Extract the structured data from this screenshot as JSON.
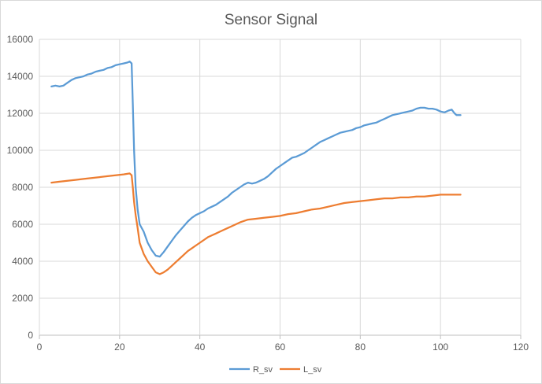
{
  "chart_data": {
    "type": "line",
    "title": "Sensor Signal",
    "xlabel": "",
    "ylabel": "",
    "xlim": [
      0,
      120
    ],
    "ylim": [
      0,
      16000
    ],
    "x_ticks": [
      0,
      20,
      40,
      60,
      80,
      100,
      120
    ],
    "y_ticks": [
      0,
      2000,
      4000,
      6000,
      8000,
      10000,
      12000,
      14000,
      16000
    ],
    "grid": true,
    "legend_position": "bottom",
    "series": [
      {
        "name": "R_sv",
        "color": "#5B9BD5",
        "points": [
          [
            3,
            13450
          ],
          [
            4,
            13500
          ],
          [
            5,
            13450
          ],
          [
            6,
            13500
          ],
          [
            7,
            13650
          ],
          [
            8,
            13800
          ],
          [
            9,
            13900
          ],
          [
            10,
            13950
          ],
          [
            11,
            14000
          ],
          [
            12,
            14100
          ],
          [
            13,
            14150
          ],
          [
            14,
            14250
          ],
          [
            15,
            14300
          ],
          [
            16,
            14350
          ],
          [
            17,
            14450
          ],
          [
            18,
            14500
          ],
          [
            19,
            14600
          ],
          [
            20,
            14650
          ],
          [
            21,
            14700
          ],
          [
            22,
            14750
          ],
          [
            22.5,
            14800
          ],
          [
            23,
            14700
          ],
          [
            23.3,
            12500
          ],
          [
            23.6,
            10000
          ],
          [
            24,
            8000
          ],
          [
            24.5,
            6800
          ],
          [
            25,
            6000
          ],
          [
            26,
            5600
          ],
          [
            27,
            5000
          ],
          [
            28,
            4600
          ],
          [
            29,
            4300
          ],
          [
            30,
            4250
          ],
          [
            31,
            4500
          ],
          [
            32,
            4800
          ],
          [
            33,
            5100
          ],
          [
            34,
            5400
          ],
          [
            35,
            5650
          ],
          [
            36,
            5900
          ],
          [
            37,
            6150
          ],
          [
            38,
            6350
          ],
          [
            39,
            6500
          ],
          [
            40,
            6600
          ],
          [
            41,
            6700
          ],
          [
            42,
            6850
          ],
          [
            43,
            6950
          ],
          [
            44,
            7050
          ],
          [
            45,
            7200
          ],
          [
            46,
            7350
          ],
          [
            47,
            7500
          ],
          [
            48,
            7700
          ],
          [
            49,
            7850
          ],
          [
            50,
            8000
          ],
          [
            51,
            8150
          ],
          [
            52,
            8250
          ],
          [
            53,
            8200
          ],
          [
            54,
            8250
          ],
          [
            55,
            8350
          ],
          [
            56,
            8450
          ],
          [
            57,
            8600
          ],
          [
            58,
            8800
          ],
          [
            59,
            9000
          ],
          [
            60,
            9150
          ],
          [
            61,
            9300
          ],
          [
            62,
            9450
          ],
          [
            63,
            9600
          ],
          [
            64,
            9650
          ],
          [
            65,
            9750
          ],
          [
            66,
            9850
          ],
          [
            67,
            10000
          ],
          [
            68,
            10150
          ],
          [
            69,
            10300
          ],
          [
            70,
            10450
          ],
          [
            71,
            10550
          ],
          [
            72,
            10650
          ],
          [
            73,
            10750
          ],
          [
            74,
            10850
          ],
          [
            75,
            10950
          ],
          [
            76,
            11000
          ],
          [
            77,
            11050
          ],
          [
            78,
            11100
          ],
          [
            79,
            11200
          ],
          [
            80,
            11250
          ],
          [
            81,
            11350
          ],
          [
            82,
            11400
          ],
          [
            83,
            11450
          ],
          [
            84,
            11500
          ],
          [
            85,
            11600
          ],
          [
            86,
            11700
          ],
          [
            87,
            11800
          ],
          [
            88,
            11900
          ],
          [
            89,
            11950
          ],
          [
            90,
            12000
          ],
          [
            91,
            12050
          ],
          [
            92,
            12100
          ],
          [
            93,
            12150
          ],
          [
            94,
            12250
          ],
          [
            95,
            12300
          ],
          [
            96,
            12300
          ],
          [
            97,
            12250
          ],
          [
            98,
            12250
          ],
          [
            99,
            12200
          ],
          [
            100,
            12100
          ],
          [
            101,
            12050
          ],
          [
            102,
            12150
          ],
          [
            102.8,
            12200
          ],
          [
            103.5,
            12000
          ],
          [
            104,
            11900
          ],
          [
            105,
            11900
          ]
        ]
      },
      {
        "name": "L_sv",
        "color": "#ED7D31",
        "points": [
          [
            3,
            8250
          ],
          [
            5,
            8300
          ],
          [
            7,
            8350
          ],
          [
            9,
            8400
          ],
          [
            11,
            8450
          ],
          [
            13,
            8500
          ],
          [
            15,
            8550
          ],
          [
            17,
            8600
          ],
          [
            19,
            8650
          ],
          [
            21,
            8700
          ],
          [
            22.5,
            8750
          ],
          [
            23,
            8650
          ],
          [
            23.3,
            8000
          ],
          [
            23.6,
            7200
          ],
          [
            24,
            6500
          ],
          [
            24.5,
            5800
          ],
          [
            25,
            5000
          ],
          [
            26,
            4400
          ],
          [
            27,
            4000
          ],
          [
            28,
            3700
          ],
          [
            29,
            3400
          ],
          [
            30,
            3300
          ],
          [
            31,
            3400
          ],
          [
            32,
            3550
          ],
          [
            33,
            3750
          ],
          [
            34,
            3950
          ],
          [
            35,
            4150
          ],
          [
            36,
            4350
          ],
          [
            37,
            4550
          ],
          [
            38,
            4700
          ],
          [
            39,
            4850
          ],
          [
            40,
            5000
          ],
          [
            41,
            5150
          ],
          [
            42,
            5300
          ],
          [
            43,
            5400
          ],
          [
            44,
            5500
          ],
          [
            45,
            5600
          ],
          [
            46,
            5700
          ],
          [
            47,
            5800
          ],
          [
            48,
            5900
          ],
          [
            49,
            6000
          ],
          [
            50,
            6100
          ],
          [
            52,
            6250
          ],
          [
            54,
            6300
          ],
          [
            56,
            6350
          ],
          [
            58,
            6400
          ],
          [
            60,
            6450
          ],
          [
            62,
            6550
          ],
          [
            64,
            6600
          ],
          [
            66,
            6700
          ],
          [
            68,
            6800
          ],
          [
            70,
            6850
          ],
          [
            72,
            6950
          ],
          [
            74,
            7050
          ],
          [
            76,
            7150
          ],
          [
            78,
            7200
          ],
          [
            80,
            7250
          ],
          [
            82,
            7300
          ],
          [
            84,
            7350
          ],
          [
            86,
            7400
          ],
          [
            88,
            7400
          ],
          [
            90,
            7450
          ],
          [
            92,
            7450
          ],
          [
            94,
            7500
          ],
          [
            96,
            7500
          ],
          [
            98,
            7550
          ],
          [
            100,
            7600
          ],
          [
            102,
            7600
          ],
          [
            105,
            7600
          ]
        ]
      }
    ]
  }
}
